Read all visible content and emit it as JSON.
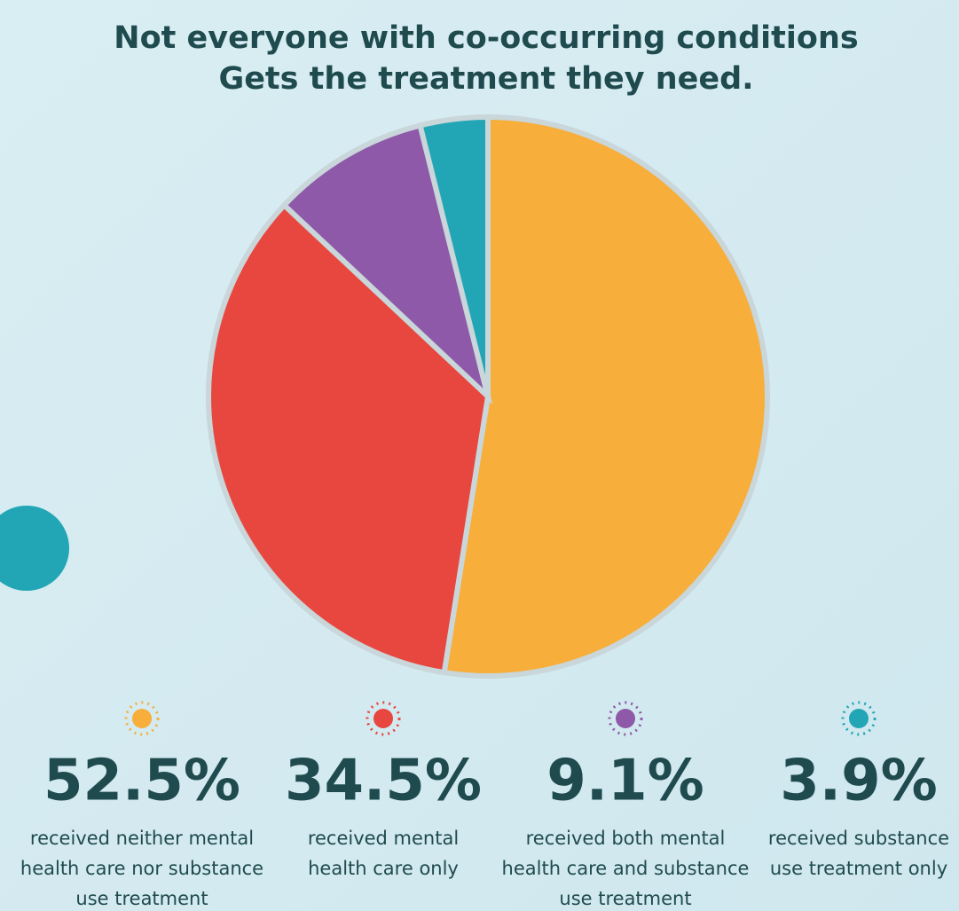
{
  "chart_data": {
    "type": "pie",
    "title": [
      "Not everyone with co-occurring conditions",
      "Gets the treatment they need."
    ],
    "categories": [
      [
        "received neither mental",
        "health care nor substance",
        "use treatment"
      ],
      [
        "received mental",
        "health care only"
      ],
      [
        "received both mental",
        "health care and substance",
        "use treatment"
      ],
      [
        "received substance",
        "use treatment only"
      ]
    ],
    "values": [
      52.5,
      34.5,
      9.1,
      3.9
    ],
    "value_labels": [
      "52.5%",
      "34.5%",
      "9.1%",
      "3.9%"
    ],
    "colors": [
      "#f7ae3a",
      "#e8473f",
      "#8e59a8",
      "#22a6b6"
    ]
  }
}
